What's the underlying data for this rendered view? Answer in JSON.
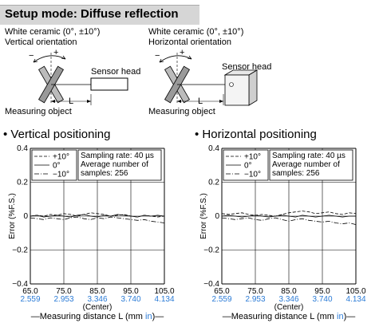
{
  "header": {
    "title": "Setup mode: Diffuse reflection"
  },
  "diagrams": [
    {
      "target_label": "White ceramic (0°, ±10°)",
      "orientation_label": "Vertical orientation",
      "sensor_label": "Sensor head",
      "object_label": "Measuring object",
      "distance_label": "L",
      "minus_sign": "−",
      "plus_sign": "+"
    },
    {
      "target_label": "White ceramic (0°, ±10°)",
      "orientation_label": "Horizontal orientation",
      "sensor_label": "Sensor head",
      "object_label": "Measuring object",
      "distance_label": "L",
      "minus_sign": "−",
      "plus_sign": "+"
    }
  ],
  "chart_data": [
    {
      "type": "line",
      "title": "• Vertical positioning",
      "ylabel": "Error (%F.S.)",
      "xlabel": "—Measuring distance L (mm in)—",
      "xlabel_parts": {
        "before": "—Measuring distance L (mm ",
        "unit_in": "in",
        "after": ")—"
      },
      "x_ticks": [
        "65.0",
        "75.0",
        "85.0",
        "95.0",
        "105.0"
      ],
      "x_ticks_in": [
        "2.559",
        "2.953",
        "3.346",
        "3.740",
        "4.134"
      ],
      "center_label": "(Center)",
      "y_ticks": [
        "0.4",
        "0.2",
        "0",
        "−0.2",
        "−0.4"
      ],
      "xlim": [
        65,
        105
      ],
      "ylim": [
        -0.4,
        0.4
      ],
      "grid": true,
      "legend": {
        "entries": [
          "+10°",
          "0°",
          "−10°"
        ],
        "position": "top-left"
      },
      "info_box": [
        "Sampling rate: 40 µs",
        "Average number of",
        "samples: 256"
      ],
      "series": [
        {
          "name": "+10°",
          "style": "dashed",
          "x": [
            65,
            67,
            69,
            71,
            73,
            75,
            77,
            79,
            81,
            83,
            85,
            87,
            89,
            91,
            93,
            95,
            97,
            99,
            101,
            103,
            105
          ],
          "y": [
            0.0,
            0.005,
            0.0,
            0.01,
            0.005,
            0.015,
            0.01,
            0.0,
            0.01,
            0.02,
            0.015,
            0.01,
            0.0,
            0.005,
            0.01,
            0.0,
            -0.005,
            0.005,
            0.0,
            -0.005,
            0.0
          ]
        },
        {
          "name": "0°",
          "style": "solid",
          "x": [
            65,
            67,
            69,
            71,
            73,
            75,
            77,
            79,
            81,
            83,
            85,
            87,
            89,
            91,
            93,
            95,
            97,
            99,
            101,
            103,
            105
          ],
          "y": [
            0.0,
            0.005,
            -0.005,
            0.0,
            0.005,
            0.0,
            -0.005,
            0.005,
            0.01,
            0.0,
            -0.005,
            0.005,
            0.0,
            0.01,
            0.005,
            0.0,
            -0.005,
            0.005,
            0.0,
            0.005,
            0.0
          ]
        },
        {
          "name": "−10°",
          "style": "dashdot",
          "x": [
            65,
            67,
            69,
            71,
            73,
            75,
            77,
            79,
            81,
            83,
            85,
            87,
            89,
            91,
            93,
            95,
            97,
            99,
            101,
            103,
            105
          ],
          "y": [
            -0.01,
            -0.015,
            -0.02,
            -0.01,
            -0.015,
            -0.02,
            -0.01,
            -0.005,
            -0.015,
            -0.02,
            -0.01,
            -0.015,
            -0.005,
            -0.01,
            -0.015,
            -0.02,
            -0.025,
            -0.02,
            -0.03,
            -0.035,
            -0.04
          ]
        }
      ]
    },
    {
      "type": "line",
      "title": "• Horizontal positioning",
      "ylabel": "Error (%F.S.)",
      "xlabel": "—Measuring distance L (mm in)—",
      "xlabel_parts": {
        "before": "—Measuring distance L (mm ",
        "unit_in": "in",
        "after": ")—"
      },
      "x_ticks": [
        "65.0",
        "75.0",
        "85.0",
        "95.0",
        "105.0"
      ],
      "x_ticks_in": [
        "2.559",
        "2.953",
        "3.346",
        "3.740",
        "4.134"
      ],
      "center_label": "(Center)",
      "y_ticks": [
        "0.4",
        "0.2",
        "0",
        "−0.2",
        "−0.4"
      ],
      "xlim": [
        65,
        105
      ],
      "ylim": [
        -0.4,
        0.4
      ],
      "grid": true,
      "legend": {
        "entries": [
          "+10°",
          "0°",
          "−10°"
        ],
        "position": "top-left"
      },
      "info_box": [
        "Sampling rate: 40 µs",
        "Average number of",
        "samples: 256"
      ],
      "series": [
        {
          "name": "+10°",
          "style": "dashed",
          "x": [
            65,
            67,
            69,
            71,
            73,
            75,
            77,
            79,
            81,
            83,
            85,
            87,
            89,
            91,
            93,
            95,
            97,
            99,
            101,
            103,
            105
          ],
          "y": [
            0.015,
            0.01,
            0.015,
            0.02,
            0.01,
            0.005,
            0.01,
            0.005,
            0.0,
            0.01,
            0.02,
            0.025,
            0.03,
            0.025,
            0.015,
            0.02,
            0.025,
            0.015,
            0.01,
            0.02,
            0.015
          ]
        },
        {
          "name": "0°",
          "style": "solid",
          "x": [
            65,
            67,
            69,
            71,
            73,
            75,
            77,
            79,
            81,
            83,
            85,
            87,
            89,
            91,
            93,
            95,
            97,
            99,
            101,
            103,
            105
          ],
          "y": [
            0.0,
            0.005,
            0.0,
            -0.005,
            0.0,
            0.005,
            0.0,
            -0.005,
            0.0,
            0.005,
            0.0,
            -0.005,
            0.005,
            0.0,
            -0.005,
            0.0,
            0.005,
            0.0,
            -0.005,
            0.0,
            0.0
          ]
        },
        {
          "name": "−10°",
          "style": "dashdot",
          "x": [
            65,
            67,
            69,
            71,
            73,
            75,
            77,
            79,
            81,
            83,
            85,
            87,
            89,
            91,
            93,
            95,
            97,
            99,
            101,
            103,
            105
          ],
          "y": [
            -0.01,
            -0.015,
            -0.02,
            -0.015,
            -0.01,
            -0.02,
            -0.025,
            -0.015,
            -0.01,
            -0.02,
            -0.03,
            -0.02,
            -0.015,
            -0.025,
            -0.03,
            -0.035,
            -0.03,
            -0.04,
            -0.045,
            -0.04,
            -0.05
          ]
        }
      ]
    }
  ]
}
